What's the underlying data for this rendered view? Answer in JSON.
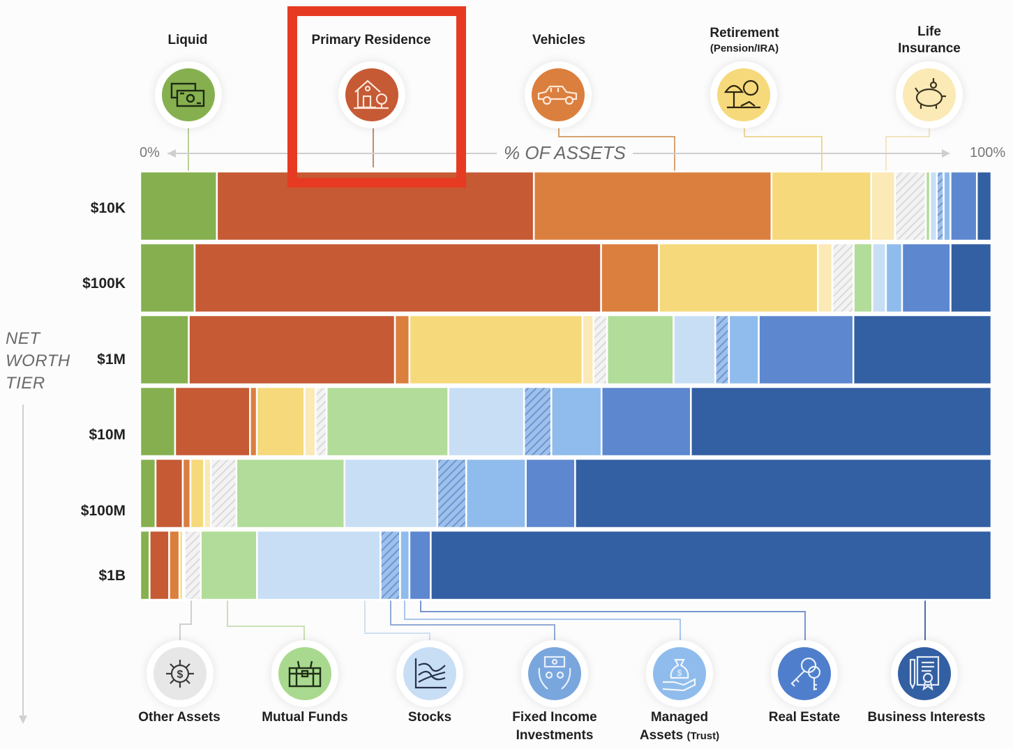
{
  "chart_data": {
    "type": "bar",
    "subtype": "100%-stacked-horizontal",
    "title": "% OF ASSETS",
    "xlabel": "% OF ASSETS",
    "ylabel": "NET WORTH TIER",
    "x_range_labels": {
      "min": "0%",
      "max": "100%"
    },
    "xlim": [
      0,
      100
    ],
    "categories": [
      "$10K",
      "$100K",
      "$1M",
      "$10M",
      "$100M",
      "$1B"
    ],
    "series": [
      {
        "name": "Liquid",
        "color": "#86b04f",
        "pattern": "solid",
        "values": [
          9.0,
          6.4,
          5.7,
          4.1,
          1.8,
          1.1
        ]
      },
      {
        "name": "Primary Residence",
        "color": "#c55a34",
        "pattern": "solid",
        "values": [
          37.2,
          47.8,
          24.2,
          8.8,
          3.2,
          2.3
        ]
      },
      {
        "name": "Vehicles",
        "color": "#db7f3e",
        "pattern": "solid",
        "values": [
          27.9,
          6.8,
          1.7,
          0.8,
          0.9,
          1.2
        ]
      },
      {
        "name": "Retirement (Pension/IRA)",
        "color": "#f5d97a",
        "pattern": "solid",
        "values": [
          11.7,
          18.7,
          20.3,
          5.6,
          1.6,
          0.4
        ]
      },
      {
        "name": "Life Insurance",
        "color": "#fbe9b6",
        "pattern": "solid",
        "values": [
          2.8,
          1.7,
          1.3,
          1.3,
          0.8,
          0.2
        ]
      },
      {
        "name": "Other Assets",
        "color": "#e4e4e4",
        "pattern": "hatched",
        "values": [
          3.6,
          2.5,
          1.6,
          1.3,
          3.0,
          1.9
        ]
      },
      {
        "name": "Mutual Funds",
        "color": "#b2dc99",
        "pattern": "solid",
        "values": [
          0.5,
          2.2,
          7.8,
          14.3,
          12.7,
          6.6
        ]
      },
      {
        "name": "Stocks",
        "color": "#c8def5",
        "pattern": "solid",
        "values": [
          0.8,
          1.6,
          4.9,
          8.9,
          10.9,
          14.5
        ]
      },
      {
        "name": "Fixed Income Investments",
        "color": "#7aa6de",
        "pattern": "hatched",
        "values": [
          0.8,
          0.0,
          1.6,
          3.2,
          3.4,
          2.3
        ]
      },
      {
        "name": "Managed Assets (Trust)",
        "color": "#8fbcec",
        "pattern": "solid",
        "values": [
          0.8,
          1.9,
          3.5,
          5.9,
          7.0,
          1.1
        ]
      },
      {
        "name": "Real Estate",
        "color": "#5d87cf",
        "pattern": "solid",
        "values": [
          3.1,
          5.7,
          11.1,
          10.5,
          5.8,
          2.5
        ]
      },
      {
        "name": "Business Interests",
        "color": "#335fa3",
        "pattern": "solid",
        "values": [
          1.7,
          4.8,
          16.2,
          35.3,
          48.9,
          65.8
        ]
      }
    ],
    "legend": {
      "top": [
        {
          "label": "Liquid",
          "sub": "",
          "icon": "cash-icon",
          "color": "#86b04f"
        },
        {
          "label": "Primary Residence",
          "sub": "",
          "icon": "house-icon",
          "color": "#c55a34"
        },
        {
          "label": "Vehicles",
          "sub": "",
          "icon": "car-icon",
          "color": "#db7f3e"
        },
        {
          "label": "Retirement",
          "sub": "(Pension/IRA)",
          "icon": "beach-umbrella-icon",
          "color": "#f5d97a"
        },
        {
          "label": "Life",
          "sub": "Insurance",
          "icon": "piggy-bank-icon",
          "color": "#fbe9b6"
        }
      ],
      "bottom": [
        {
          "label": "Other Assets",
          "sub": "",
          "icon": "dollar-network-icon",
          "color": "#e4e4e4"
        },
        {
          "label": "Mutual Funds",
          "sub": "",
          "icon": "treasure-chest-icon",
          "color": "#b2dc99"
        },
        {
          "label": "Stocks",
          "sub": "",
          "icon": "stock-chart-icon",
          "color": "#c8def5"
        },
        {
          "label": "Fixed Income",
          "sub": "Investments",
          "icon": "hands-money-icon",
          "color": "#7aa6de"
        },
        {
          "label": "Managed",
          "sub": "Assets",
          "sub_small": "(Trust)",
          "icon": "money-bag-hand-icon",
          "color": "#8fbcec"
        },
        {
          "label": "Real Estate",
          "sub": "",
          "icon": "keys-icon",
          "color": "#5d87cf"
        },
        {
          "label": "Business Interests",
          "sub": "",
          "icon": "contract-icon",
          "color": "#335fa3"
        }
      ]
    },
    "highlighted_category": "Primary Residence",
    "highlight_color": "#e63b22"
  },
  "axis": {
    "y_title_lines": [
      "NET",
      "WORTH",
      "TIER"
    ],
    "x_min_label": "0%",
    "x_max_label": "100%",
    "x_title": "% OF ASSETS"
  }
}
